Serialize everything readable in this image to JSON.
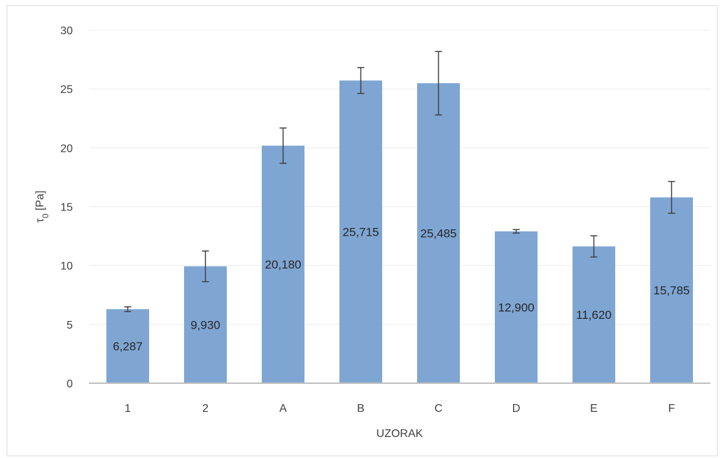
{
  "chart_data": {
    "type": "bar",
    "categories": [
      "1",
      "2",
      "A",
      "B",
      "C",
      "D",
      "E",
      "F"
    ],
    "values": [
      6.287,
      9.93,
      20.18,
      25.715,
      25.485,
      12.9,
      11.62,
      15.785
    ],
    "value_labels": [
      "6,287",
      "9,930",
      "20,180",
      "25,715",
      "25,485",
      "12,900",
      "11,620",
      "15,785"
    ],
    "error_plus_minus": [
      0.2,
      1.3,
      1.5,
      1.1,
      2.7,
      0.15,
      0.9,
      1.35
    ],
    "xlabel": "UZORAK",
    "ylabel_main": "τ",
    "ylabel_sub": "0",
    "ylabel_unit": " [Pa]",
    "ylim": [
      0,
      30
    ],
    "yticks": [
      0,
      5,
      10,
      15,
      20,
      25,
      30
    ],
    "grid": true,
    "bar_color": "#7fa6d3",
    "error_bar_color": "#404040",
    "gridline_color": "#ececec",
    "axis_color": "#bfbfbf"
  }
}
